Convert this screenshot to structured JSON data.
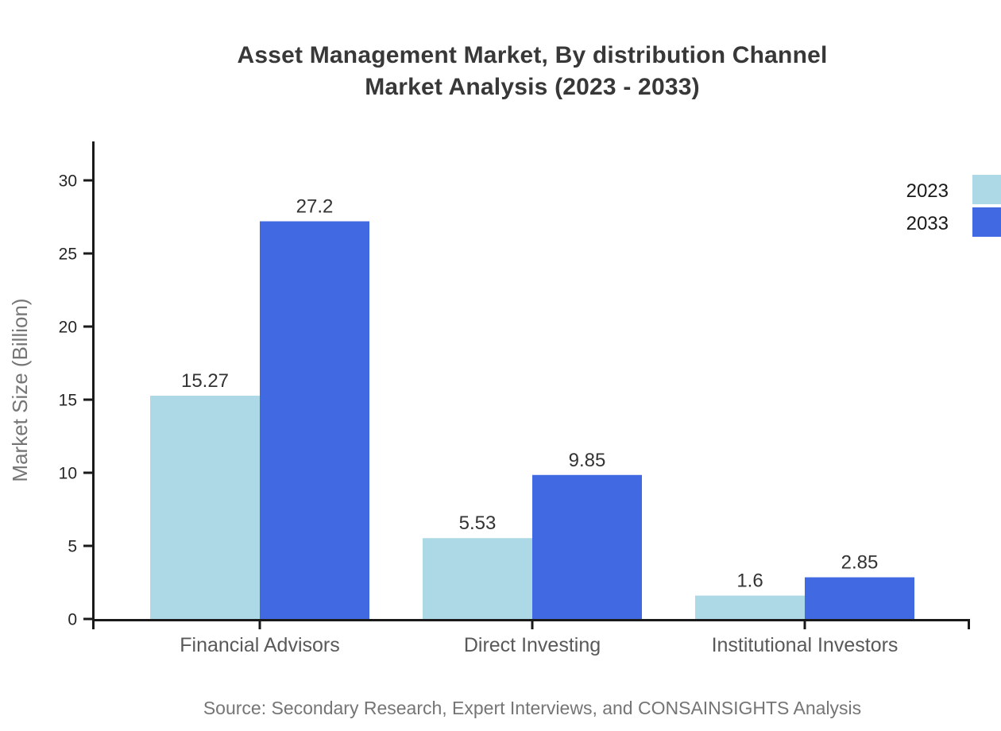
{
  "title": {
    "line1": "Asset Management Market, By distribution Channel",
    "line2": "Market Analysis (2023 - 2033)"
  },
  "source_note": "Source: Secondary Research, Expert Interviews, and CONSAINSIGHTS Analysis",
  "chart_data": {
    "type": "bar",
    "title": "Asset Management Market, By distribution Channel Market Analysis (2023 - 2033)",
    "categories": [
      "Financial Advisors",
      "Direct Investing",
      "Institutional Investors"
    ],
    "series": [
      {
        "name": "2023",
        "color": "#ADD8E6",
        "values": [
          15.27,
          5.53,
          1.6
        ]
      },
      {
        "name": "2033",
        "color": "#4169E1",
        "values": [
          27.2,
          9.85,
          2.85
        ]
      }
    ],
    "xlabel": "",
    "ylabel": "Market Size (Billion)",
    "ylim": [
      0,
      32.5
    ],
    "yticks": [
      0,
      5,
      10,
      15,
      20,
      25,
      30
    ],
    "grid": false,
    "legend_position": "top-right",
    "value_labels": true
  }
}
